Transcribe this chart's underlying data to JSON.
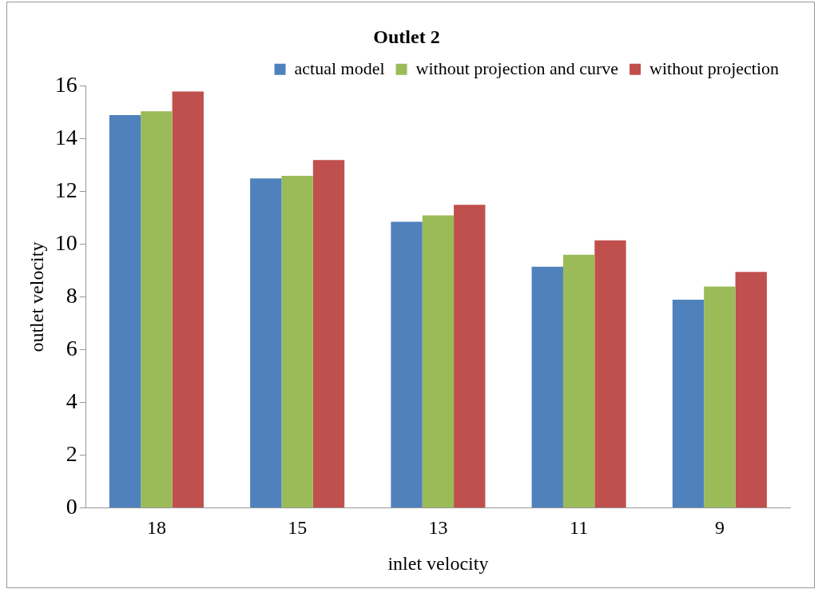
{
  "chart_data": {
    "type": "bar",
    "title": "Outlet 2",
    "xlabel": "inlet velocity",
    "ylabel": "outlet velocity",
    "categories": [
      "18",
      "15",
      "13",
      "11",
      "9"
    ],
    "series": [
      {
        "name": "actual model",
        "color": "#4f81bd",
        "values": [
          14.9,
          12.5,
          10.85,
          9.15,
          7.9
        ]
      },
      {
        "name": "without projection and curve",
        "color": "#9bbb59",
        "values": [
          15.05,
          12.6,
          11.1,
          9.6,
          8.4
        ]
      },
      {
        "name": "without projection",
        "color": "#c0504d",
        "values": [
          15.8,
          13.2,
          11.5,
          10.15,
          8.95
        ]
      }
    ],
    "ylim": [
      0,
      16
    ],
    "yticks": [
      0,
      2,
      4,
      6,
      8,
      10,
      12,
      14,
      16
    ],
    "grid": false,
    "legend": "top right"
  }
}
